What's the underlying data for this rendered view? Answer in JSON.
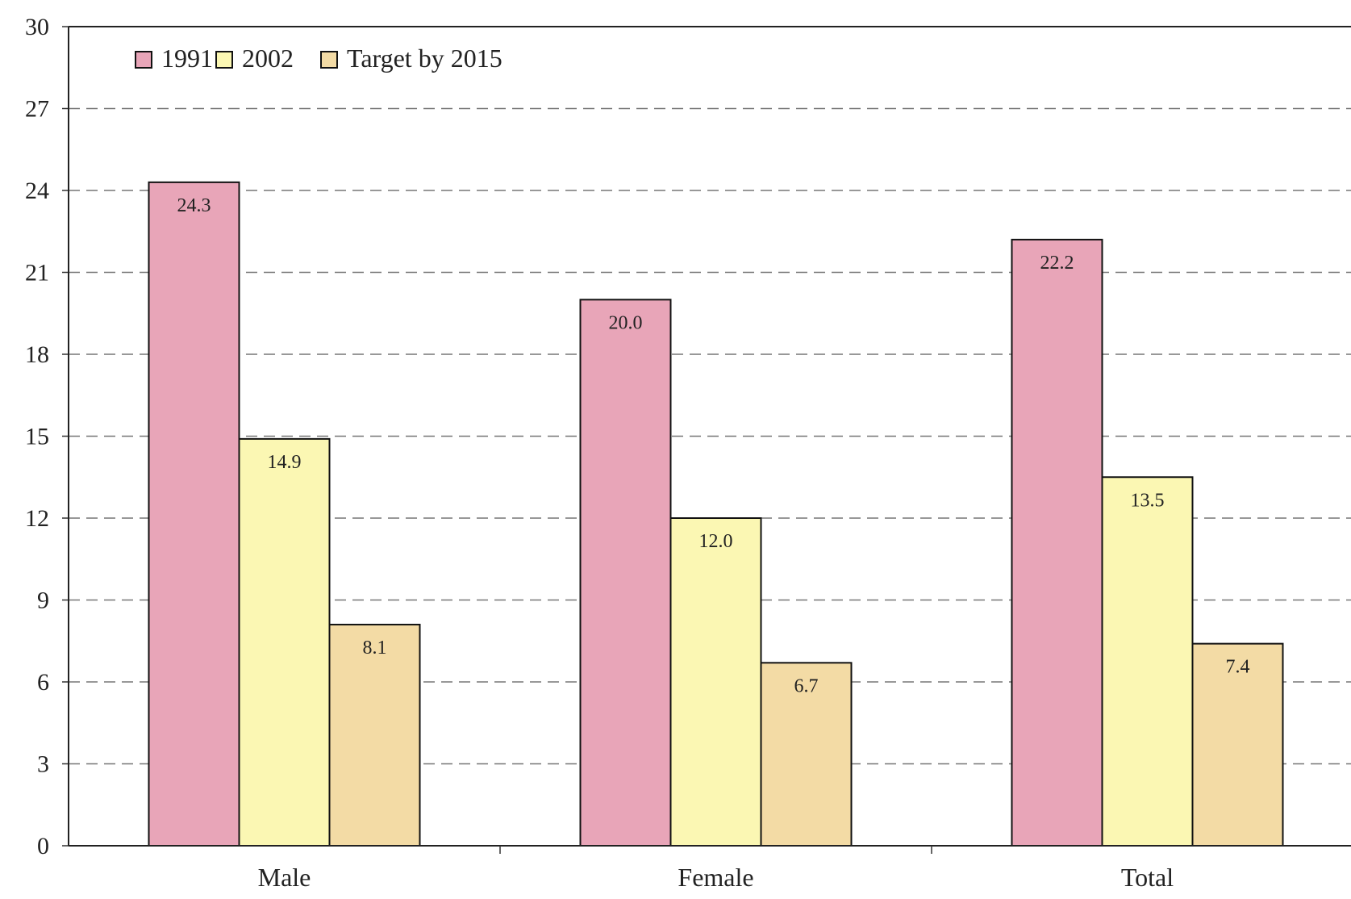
{
  "chart_data": {
    "type": "bar",
    "categories": [
      "Male",
      "Female",
      "Total"
    ],
    "series": [
      {
        "name": "1991",
        "values": [
          24.3,
          20.0,
          22.2
        ],
        "labels": [
          "24.3",
          "20.0",
          "22.2"
        ],
        "color": "#e8a5b8"
      },
      {
        "name": "2002",
        "values": [
          14.9,
          12.0,
          13.5
        ],
        "labels": [
          "14.9",
          "12.0",
          "13.5"
        ],
        "color": "#fbf7b3"
      },
      {
        "name": "Target by 2015",
        "values": [
          8.1,
          6.7,
          7.4
        ],
        "labels": [
          "8.1",
          "6.7",
          "7.4"
        ],
        "color": "#f3dba5"
      }
    ],
    "ylim": [
      0,
      30
    ],
    "yticks": [
      "0",
      "3",
      "6",
      "9",
      "12",
      "15",
      "18",
      "21",
      "24",
      "27",
      "30"
    ],
    "grid": true,
    "legend": "top-left",
    "title": "",
    "xlabel": "",
    "ylabel": ""
  }
}
